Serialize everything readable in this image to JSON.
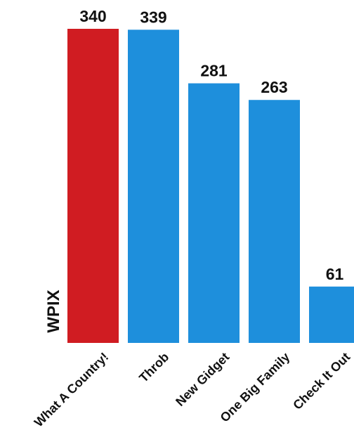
{
  "chart_data": {
    "type": "bar",
    "title": "",
    "xlabel": "",
    "ylabel": "",
    "station_label": "WPIX",
    "categories": [
      "What A Country!",
      "Throb",
      "New Gidget",
      "One Big Family",
      "Check It Out"
    ],
    "values": [
      340,
      339,
      281,
      263,
      61
    ],
    "bar_colors": [
      "#d01c22",
      "#1e8fdc",
      "#1e8fdc",
      "#1e8fdc",
      "#1e8fdc"
    ],
    "ylim": [
      0,
      340
    ],
    "grid": false,
    "legend": "none"
  }
}
